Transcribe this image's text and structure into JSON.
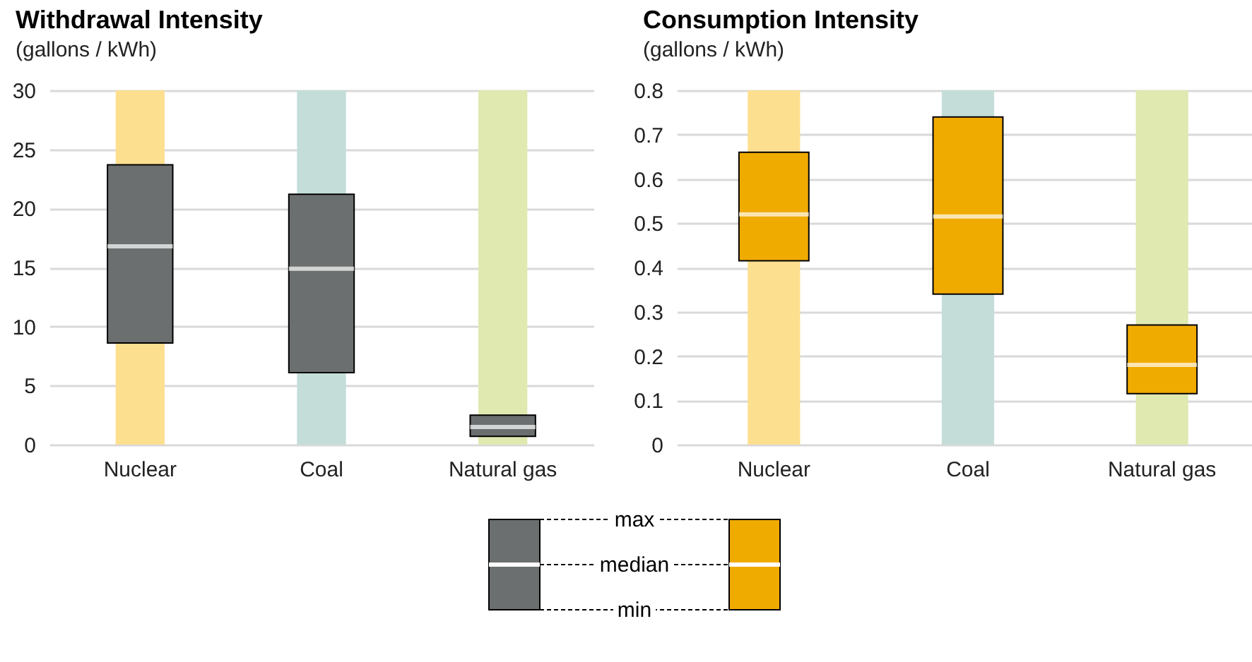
{
  "chart_data": [
    {
      "type": "box",
      "title": "Withdrawal Intensity",
      "subtitle": "(gallons / kWh)",
      "categories": [
        "Nuclear",
        "Coal",
        "Natural gas"
      ],
      "series": [
        {
          "color": "#6c6f6f",
          "boxes": [
            {
              "low": 8.6,
              "q1": 8.6,
              "median": 16.8,
              "q3": 23.7,
              "high": 23.7
            },
            {
              "low": 6.1,
              "q1": 6.1,
              "median": 14.9,
              "q3": 21.2,
              "high": 21.2
            },
            {
              "low": 0.7,
              "q1": 0.7,
              "median": 1.5,
              "q3": 2.5,
              "high": 2.5
            }
          ]
        }
      ],
      "bands": [
        {
          "axis": "x",
          "from": "Nuclear",
          "to": "Nuclear",
          "color": "#fddf90"
        },
        {
          "axis": "x",
          "from": "Coal",
          "to": "Coal",
          "color": "#c4ddd9"
        },
        {
          "axis": "x",
          "from": "Natural gas",
          "to": "Natural gas",
          "color": "#dfe9b0"
        }
      ],
      "ylim": [
        0,
        30
      ],
      "yticks": [
        0,
        5,
        10,
        15,
        20,
        25,
        30
      ],
      "grid": "y"
    },
    {
      "type": "box",
      "title": "Consumption Intensity",
      "subtitle": "(gallons / kWh)",
      "categories": [
        "Nuclear",
        "Coal",
        "Natural gas"
      ],
      "series": [
        {
          "color": "#f0ab00",
          "boxes": [
            {
              "low": 0.415,
              "q1": 0.415,
              "median": 0.52,
              "q3": 0.66,
              "high": 0.66
            },
            {
              "low": 0.34,
              "q1": 0.34,
              "median": 0.515,
              "q3": 0.74,
              "high": 0.74
            },
            {
              "low": 0.115,
              "q1": 0.115,
              "median": 0.18,
              "q3": 0.27,
              "high": 0.27
            }
          ]
        }
      ],
      "bands": [
        {
          "axis": "x",
          "from": "Nuclear",
          "to": "Nuclear",
          "color": "#fddf90"
        },
        {
          "axis": "x",
          "from": "Coal",
          "to": "Coal",
          "color": "#c4ddd9"
        },
        {
          "axis": "x",
          "from": "Natural gas",
          "to": "Natural gas",
          "color": "#dfe9b0"
        }
      ],
      "ylim": [
        0,
        0.8
      ],
      "yticks": [
        0,
        0.1,
        0.2,
        0.3,
        0.4,
        0.5,
        0.6,
        0.7,
        0.8
      ],
      "grid": "y",
      "annotations": [
        "max",
        "median",
        "min"
      ]
    }
  ]
}
